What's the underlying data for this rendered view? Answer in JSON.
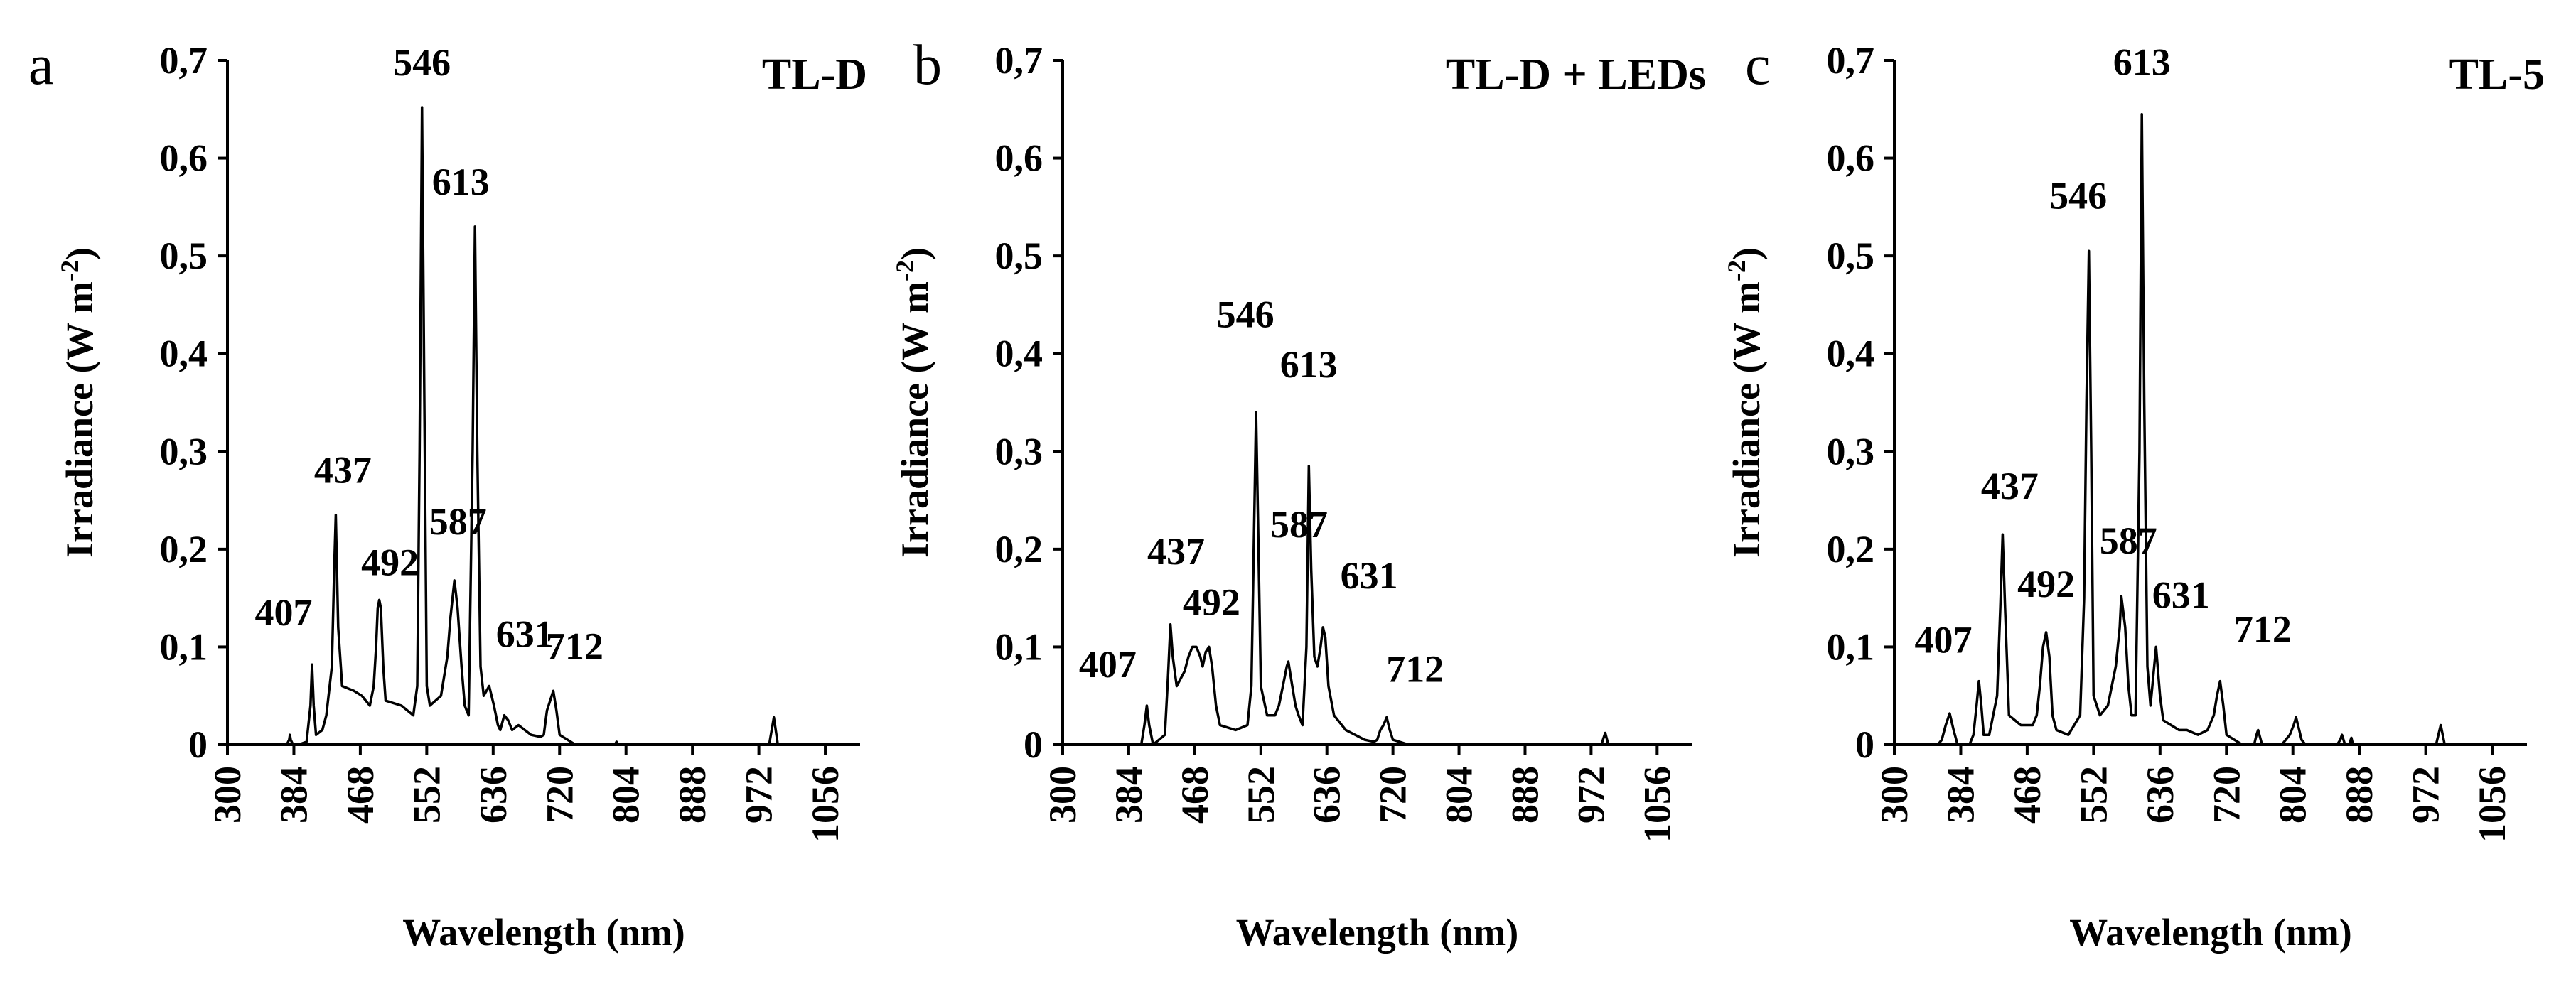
{
  "chart_data": [
    {
      "type": "line",
      "panel": "a",
      "title": "TL-D",
      "xlabel": "Wavelength (nm)",
      "ylabel": "Irradiance (W m-2)",
      "ylabel_main": "Irradiance (W m",
      "ylabel_sup": "-2",
      "ylabel_close": ")",
      "xlim": [
        300,
        1100
      ],
      "ylim": [
        0,
        0.7
      ],
      "x_ticks": [
        "300",
        "384",
        "468",
        "552",
        "636",
        "720",
        "804",
        "888",
        "972",
        "1056"
      ],
      "y_ticks": [
        "0",
        "0,1",
        "0,2",
        "0,3",
        "0,4",
        "0,5",
        "0,6",
        "0,7"
      ],
      "series": [
        {
          "name": "TL-D",
          "x": [
            300,
            375,
            378,
            379,
            380,
            383,
            384,
            390,
            400,
            405,
            407,
            409,
            412,
            420,
            425,
            432,
            435,
            437,
            440,
            445,
            460,
            470,
            480,
            485,
            488,
            490,
            492,
            494,
            497,
            500,
            520,
            535,
            540,
            543,
            546,
            549,
            552,
            556,
            570,
            578,
            582,
            587,
            591,
            596,
            600,
            605,
            610,
            613,
            616,
            620,
            624,
            631,
            637,
            642,
            645,
            650,
            655,
            660,
            668,
            684,
            696,
            700,
            704,
            712,
            716,
            720,
            740,
            780,
            790,
            792,
            794,
            800,
            860,
            960,
            975,
            985,
            991,
            996,
            1000,
            1005,
            1080
          ],
          "y": [
            0,
            0,
            0.005,
            0.01,
            0.005,
            0,
            0,
            0,
            0.003,
            0.04,
            0.082,
            0.04,
            0.01,
            0.015,
            0.03,
            0.08,
            0.18,
            0.235,
            0.12,
            0.06,
            0.055,
            0.05,
            0.04,
            0.06,
            0.1,
            0.14,
            0.148,
            0.14,
            0.08,
            0.045,
            0.04,
            0.03,
            0.06,
            0.3,
            0.652,
            0.35,
            0.06,
            0.04,
            0.05,
            0.09,
            0.13,
            0.168,
            0.14,
            0.08,
            0.04,
            0.03,
            0.3,
            0.53,
            0.3,
            0.08,
            0.05,
            0.06,
            0.04,
            0.02,
            0.015,
            0.03,
            0.025,
            0.015,
            0.02,
            0.01,
            0.008,
            0.01,
            0.035,
            0.055,
            0.035,
            0.01,
            0,
            0,
            0,
            0.003,
            0,
            0,
            0,
            0,
            0,
            0,
            0.028,
            0,
            0,
            0,
            0
          ]
        }
      ],
      "annotations": [
        {
          "text": "546",
          "x": 546,
          "y": 0.652
        },
        {
          "text": "613",
          "x": 613,
          "y": 0.53
        },
        {
          "text": "437",
          "x": 437,
          "y": 0.235
        },
        {
          "text": "587",
          "x": 587,
          "y": 0.168
        },
        {
          "text": "492",
          "x": 492,
          "y": 0.148
        },
        {
          "text": "407",
          "x": 407,
          "y": 0.082
        },
        {
          "text": "631",
          "x": 631,
          "y": 0.06
        },
        {
          "text": "712",
          "x": 712,
          "y": 0.055
        }
      ]
    },
    {
      "type": "line",
      "panel": "b",
      "title": "TL-D + LEDs",
      "xlabel": "Wavelength (nm)",
      "ylabel": "Irradiance (W m-2)",
      "ylabel_main": "Irradiance (W m",
      "ylabel_sup": "-2",
      "ylabel_close": ")",
      "xlim": [
        300,
        1100
      ],
      "ylim": [
        0,
        0.7
      ],
      "x_ticks": [
        "300",
        "384",
        "468",
        "552",
        "636",
        "720",
        "804",
        "888",
        "972",
        "1056"
      ],
      "y_ticks": [
        "0",
        "0,1",
        "0,2",
        "0,3",
        "0,4",
        "0,5",
        "0,6",
        "0,7"
      ],
      "series": [
        {
          "name": "TL-D + LEDs",
          "x": [
            300,
            375,
            400,
            404,
            407,
            410,
            415,
            430,
            434,
            437,
            440,
            445,
            455,
            460,
            465,
            470,
            475,
            478,
            482,
            486,
            490,
            495,
            500,
            520,
            535,
            540,
            543,
            546,
            549,
            552,
            560,
            570,
            575,
            580,
            585,
            587,
            592,
            596,
            600,
            605,
            610,
            613,
            616,
            620,
            624,
            628,
            631,
            634,
            638,
            645,
            660,
            684,
            696,
            700,
            704,
            708,
            712,
            716,
            720,
            740,
            780,
            960,
            985,
            990,
            994,
            1000,
            1080
          ],
          "y": [
            0,
            0,
            0,
            0.02,
            0.04,
            0.02,
            0,
            0.01,
            0.07,
            0.123,
            0.09,
            0.06,
            0.075,
            0.09,
            0.1,
            0.1,
            0.09,
            0.08,
            0.095,
            0.1,
            0.08,
            0.04,
            0.02,
            0.015,
            0.02,
            0.06,
            0.2,
            0.34,
            0.2,
            0.06,
            0.03,
            0.03,
            0.04,
            0.06,
            0.08,
            0.085,
            0.06,
            0.04,
            0.03,
            0.02,
            0.1,
            0.285,
            0.18,
            0.09,
            0.08,
            0.1,
            0.12,
            0.11,
            0.06,
            0.03,
            0.015,
            0.005,
            0.003,
            0.005,
            0.015,
            0.02,
            0.028,
            0.015,
            0.005,
            0,
            0,
            0,
            0,
            0.012,
            0,
            0,
            0
          ]
        }
      ],
      "annotations": [
        {
          "text": "546",
          "x": 546,
          "y": 0.34
        },
        {
          "text": "613",
          "x": 613,
          "y": 0.285
        },
        {
          "text": "437",
          "x": 437,
          "y": 0.123
        },
        {
          "text": "587",
          "x": 587,
          "y": 0.085
        },
        {
          "text": "492",
          "x": 492,
          "y": 0.1
        },
        {
          "text": "407",
          "x": 407,
          "y": 0.04
        },
        {
          "text": "631",
          "x": 631,
          "y": 0.12
        },
        {
          "text": "712",
          "x": 712,
          "y": 0.028
        }
      ]
    },
    {
      "type": "line",
      "panel": "c",
      "title": "TL-5",
      "xlabel": "Wavelength (nm)",
      "ylabel": "Irradiance (W m-2)",
      "ylabel_main": "Irradiance (W m",
      "ylabel_sup": "-2",
      "ylabel_close": ")",
      "xlim": [
        300,
        1100
      ],
      "ylim": [
        0,
        0.7
      ],
      "x_ticks": [
        "300",
        "384",
        "468",
        "552",
        "636",
        "720",
        "804",
        "888",
        "972",
        "1056"
      ],
      "y_ticks": [
        "0",
        "0,1",
        "0,2",
        "0,3",
        "0,4",
        "0,5",
        "0,6",
        "0,7"
      ],
      "series": [
        {
          "name": "TL-5",
          "x": [
            300,
            355,
            360,
            365,
            370,
            375,
            380,
            395,
            400,
            404,
            407,
            410,
            413,
            420,
            430,
            434,
            437,
            440,
            445,
            460,
            475,
            480,
            484,
            488,
            492,
            496,
            500,
            505,
            520,
            535,
            540,
            543,
            546,
            549,
            552,
            560,
            570,
            580,
            585,
            587,
            592,
            596,
            600,
            605,
            610,
            613,
            616,
            620,
            624,
            631,
            636,
            640,
            650,
            660,
            670,
            684,
            696,
            704,
            708,
            712,
            716,
            720,
            740,
            755,
            758,
            760,
            765,
            790,
            800,
            805,
            808,
            812,
            815,
            820,
            860,
            864,
            866,
            870,
            875,
            878,
            880,
            960,
            985,
            991,
            996,
            1000,
            1080
          ],
          "y": [
            0,
            0,
            0.005,
            0.02,
            0.032,
            0.015,
            0,
            0,
            0.01,
            0.04,
            0.065,
            0.04,
            0.01,
            0.01,
            0.05,
            0.14,
            0.215,
            0.14,
            0.03,
            0.02,
            0.02,
            0.03,
            0.06,
            0.1,
            0.115,
            0.09,
            0.03,
            0.015,
            0.01,
            0.03,
            0.15,
            0.35,
            0.505,
            0.3,
            0.05,
            0.03,
            0.04,
            0.08,
            0.12,
            0.152,
            0.12,
            0.06,
            0.03,
            0.03,
            0.3,
            0.645,
            0.35,
            0.08,
            0.04,
            0.1,
            0.05,
            0.025,
            0.02,
            0.015,
            0.015,
            0.01,
            0.015,
            0.03,
            0.05,
            0.065,
            0.04,
            0.01,
            0,
            0,
            0.01,
            0.015,
            0,
            0,
            0.01,
            0.02,
            0.028,
            0.015,
            0.005,
            0,
            0,
            0.005,
            0.01,
            0,
            0,
            0.007,
            0,
            0,
            0,
            0.02,
            0,
            0,
            0
          ]
        }
      ],
      "annotations": [
        {
          "text": "613",
          "x": 613,
          "y": 0.645
        },
        {
          "text": "546",
          "x": 546,
          "y": 0.505
        },
        {
          "text": "437",
          "x": 437,
          "y": 0.215
        },
        {
          "text": "587",
          "x": 587,
          "y": 0.152
        },
        {
          "text": "492",
          "x": 492,
          "y": 0.115
        },
        {
          "text": "407",
          "x": 407,
          "y": 0.065
        },
        {
          "text": "631",
          "x": 631,
          "y": 0.1
        },
        {
          "text": "712",
          "x": 712,
          "y": 0.065
        }
      ]
    }
  ]
}
